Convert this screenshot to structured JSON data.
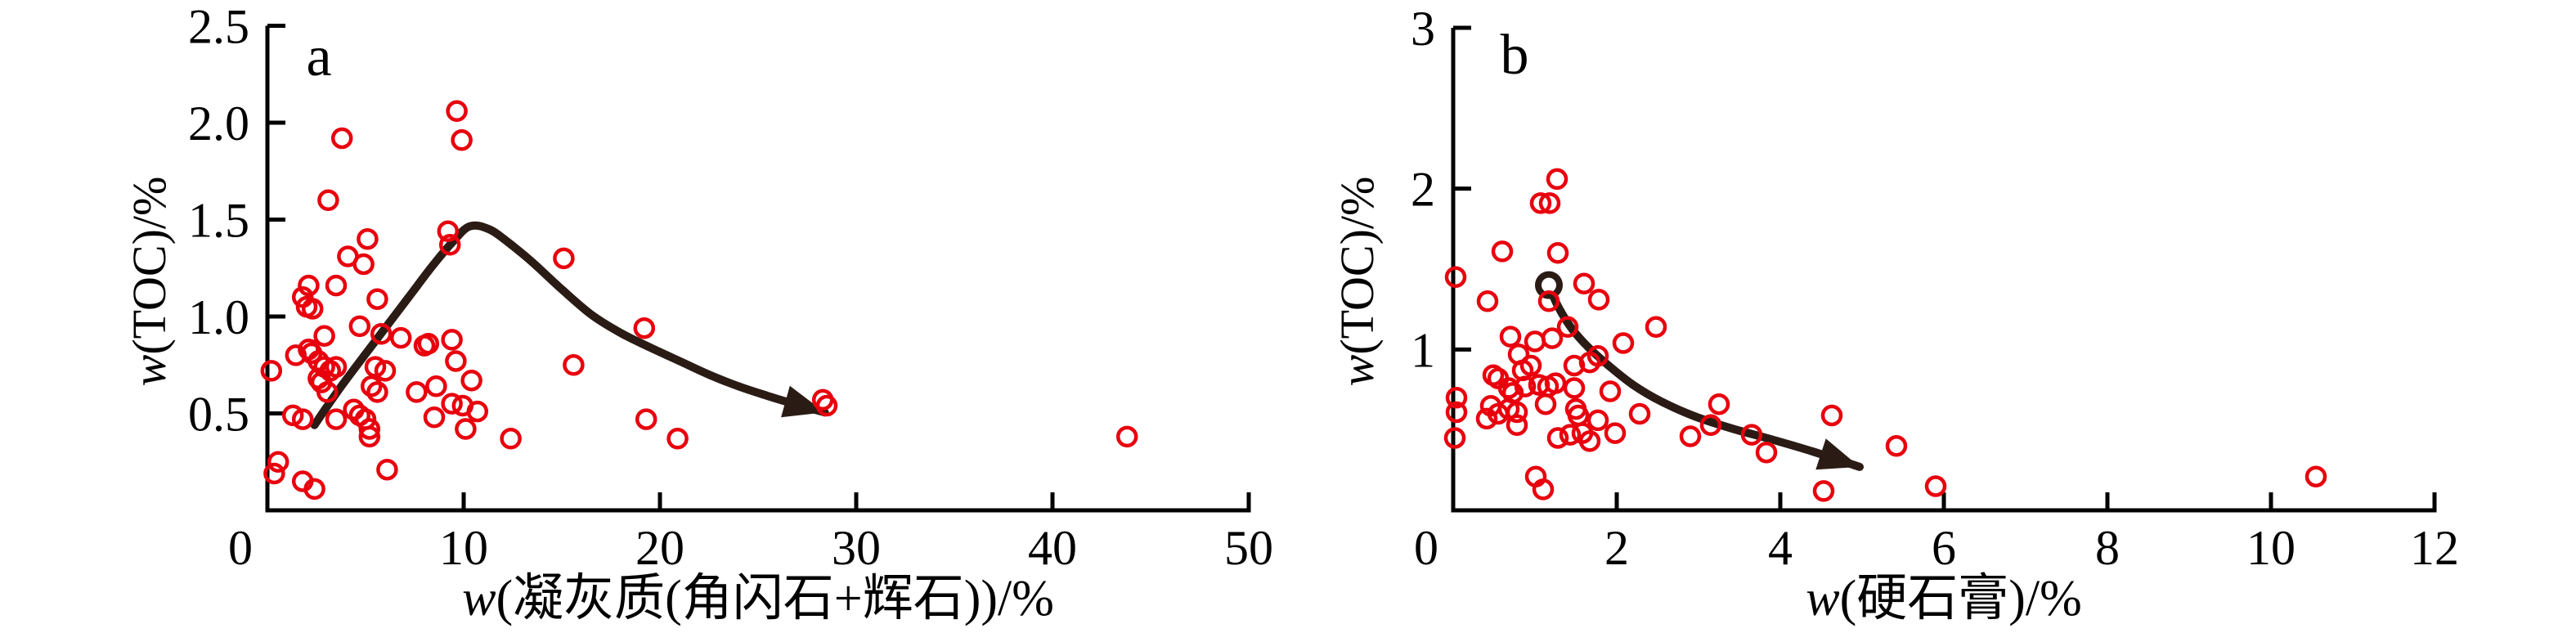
{
  "figure": {
    "background": "#ffffff",
    "panel_a_label": "a",
    "panel_b_label": "b"
  },
  "colors": {
    "marker": "#e8000d",
    "trend": "#2a1c15",
    "axis": "#000000",
    "text": "#000000"
  },
  "chart_data": [
    {
      "type": "scatter",
      "panel_label": "a",
      "xlabel": "w(凝灰质(角闪石+辉石))/%",
      "xlabel_parts": {
        "italic": "w",
        "rest": "(凝灰质(角闪石+辉石))/%"
      },
      "ylabel": "w(TOC)/%",
      "ylabel_parts": {
        "italic": "w",
        "rest": "(TOC)/%"
      },
      "xlim": [
        0,
        50
      ],
      "ylim": [
        0,
        2.5
      ],
      "xticks": [
        {
          "v": 0,
          "label": "0"
        },
        {
          "v": 10,
          "label": "10"
        },
        {
          "v": 20,
          "label": "20"
        },
        {
          "v": 30,
          "label": "30"
        },
        {
          "v": 40,
          "label": "40"
        },
        {
          "v": 50,
          "label": "50"
        }
      ],
      "yticks": [
        {
          "v": 0.5,
          "label": "0.5"
        },
        {
          "v": 1.0,
          "label": "1.0"
        },
        {
          "v": 1.5,
          "label": "1.5"
        },
        {
          "v": 2.0,
          "label": "2.0"
        },
        {
          "v": 2.5,
          "label": "2.5"
        }
      ],
      "grid": false,
      "legend": null,
      "marker": {
        "shape": "open-circle",
        "color": "#e8000d"
      },
      "points": [
        [
          3.8,
          1.92
        ],
        [
          9.65,
          2.06
        ],
        [
          9.9,
          1.91
        ],
        [
          3.1,
          1.6
        ],
        [
          5.1,
          1.4
        ],
        [
          4.1,
          1.31
        ],
        [
          4.9,
          1.27
        ],
        [
          9.2,
          1.44
        ],
        [
          9.3,
          1.37
        ],
        [
          15.1,
          1.3
        ],
        [
          2.1,
          1.16
        ],
        [
          3.5,
          1.16
        ],
        [
          1.8,
          1.1
        ],
        [
          2.0,
          1.05
        ],
        [
          2.3,
          1.04
        ],
        [
          5.6,
          1.09
        ],
        [
          4.7,
          0.95
        ],
        [
          5.8,
          0.91
        ],
        [
          6.8,
          0.89
        ],
        [
          2.9,
          0.9
        ],
        [
          8.0,
          0.85
        ],
        [
          8.2,
          0.86
        ],
        [
          9.4,
          0.88
        ],
        [
          9.6,
          0.77
        ],
        [
          19.2,
          0.94
        ],
        [
          2.1,
          0.83
        ],
        [
          2.25,
          0.81
        ],
        [
          1.45,
          0.8
        ],
        [
          0.2,
          0.72
        ],
        [
          2.6,
          0.77
        ],
        [
          2.9,
          0.74
        ],
        [
          3.2,
          0.72
        ],
        [
          3.5,
          0.74
        ],
        [
          5.5,
          0.74
        ],
        [
          6.0,
          0.72
        ],
        [
          15.6,
          0.75
        ],
        [
          2.6,
          0.68
        ],
        [
          2.75,
          0.66
        ],
        [
          10.4,
          0.67
        ],
        [
          3.05,
          0.61
        ],
        [
          5.3,
          0.64
        ],
        [
          5.6,
          0.61
        ],
        [
          8.6,
          0.64
        ],
        [
          7.6,
          0.61
        ],
        [
          9.4,
          0.55
        ],
        [
          9.95,
          0.54
        ],
        [
          10.7,
          0.51
        ],
        [
          28.3,
          0.57
        ],
        [
          28.5,
          0.54
        ],
        [
          8.5,
          0.48
        ],
        [
          4.4,
          0.52
        ],
        [
          4.7,
          0.49
        ],
        [
          19.3,
          0.47
        ],
        [
          1.3,
          0.49
        ],
        [
          1.8,
          0.47
        ],
        [
          3.5,
          0.47
        ],
        [
          5.0,
          0.47
        ],
        [
          5.2,
          0.42
        ],
        [
          10.1,
          0.42
        ],
        [
          5.2,
          0.38
        ],
        [
          12.4,
          0.37
        ],
        [
          20.9,
          0.37
        ],
        [
          43.8,
          0.38
        ],
        [
          6.1,
          0.21
        ],
        [
          0.55,
          0.25
        ],
        [
          0.35,
          0.19
        ],
        [
          1.8,
          0.15
        ],
        [
          2.4,
          0.11
        ]
      ],
      "trend": {
        "style": "arrow-curve",
        "color": "#2a1c15",
        "start_marker": false,
        "points": [
          [
            2.4,
            0.44
          ],
          [
            3.0,
            0.53
          ],
          [
            3.8,
            0.645
          ],
          [
            4.8,
            0.78
          ],
          [
            6.0,
            0.94
          ],
          [
            7.2,
            1.1
          ],
          [
            8.4,
            1.26
          ],
          [
            9.4,
            1.38
          ],
          [
            10.3,
            1.465
          ],
          [
            11.3,
            1.45
          ],
          [
            12.3,
            1.38
          ],
          [
            13.5,
            1.28
          ],
          [
            15.0,
            1.14
          ],
          [
            16.5,
            1.01
          ],
          [
            18.0,
            0.915
          ],
          [
            19.5,
            0.84
          ],
          [
            21.0,
            0.77
          ],
          [
            22.5,
            0.7
          ],
          [
            24.0,
            0.64
          ],
          [
            25.5,
            0.59
          ],
          [
            26.8,
            0.55
          ],
          [
            28.4,
            0.505
          ]
        ]
      }
    },
    {
      "type": "scatter",
      "panel_label": "b",
      "xlabel": "w(硬石膏)/%",
      "xlabel_parts": {
        "italic": "w",
        "rest": "(硬石膏)/%"
      },
      "ylabel": "w(TOC)/%",
      "ylabel_parts": {
        "italic": "w",
        "rest": "(TOC)/%"
      },
      "xlim": [
        0,
        12
      ],
      "ylim": [
        0,
        3
      ],
      "xticks": [
        {
          "v": 0,
          "label": "0"
        },
        {
          "v": 2,
          "label": "2"
        },
        {
          "v": 4,
          "label": "4"
        },
        {
          "v": 6,
          "label": "6"
        },
        {
          "v": 8,
          "label": "8"
        },
        {
          "v": 10,
          "label": "10"
        },
        {
          "v": 12,
          "label": "12"
        }
      ],
      "yticks": [
        {
          "v": 1,
          "label": "1"
        },
        {
          "v": 2,
          "label": "2"
        },
        {
          "v": 3,
          "label": "3"
        }
      ],
      "grid": false,
      "legend": null,
      "marker": {
        "shape": "open-circle",
        "color": "#e8000d"
      },
      "points": [
        [
          1.27,
          2.06
        ],
        [
          1.07,
          1.91
        ],
        [
          1.18,
          1.91
        ],
        [
          0.6,
          1.61
        ],
        [
          1.28,
          1.6
        ],
        [
          0.03,
          1.45
        ],
        [
          1.6,
          1.41
        ],
        [
          1.78,
          1.31
        ],
        [
          1.17,
          1.3
        ],
        [
          0.42,
          1.3
        ],
        [
          1.4,
          1.14
        ],
        [
          2.48,
          1.14
        ],
        [
          0.7,
          1.08
        ],
        [
          1.0,
          1.05
        ],
        [
          1.21,
          1.07
        ],
        [
          2.08,
          1.04
        ],
        [
          0.8,
          0.97
        ],
        [
          0.95,
          0.9
        ],
        [
          0.85,
          0.87
        ],
        [
          1.48,
          0.9
        ],
        [
          1.67,
          0.92
        ],
        [
          1.77,
          0.96
        ],
        [
          0.49,
          0.84
        ],
        [
          0.55,
          0.82
        ],
        [
          0.68,
          0.76
        ],
        [
          0.73,
          0.73
        ],
        [
          0.88,
          0.77
        ],
        [
          1.05,
          0.78
        ],
        [
          1.16,
          0.77
        ],
        [
          1.25,
          0.79
        ],
        [
          1.48,
          0.76
        ],
        [
          1.92,
          0.74
        ],
        [
          0.04,
          0.7
        ],
        [
          0.04,
          0.61
        ],
        [
          0.46,
          0.65
        ],
        [
          0.55,
          0.6
        ],
        [
          0.68,
          0.63
        ],
        [
          0.78,
          0.61
        ],
        [
          0.41,
          0.57
        ],
        [
          0.78,
          0.53
        ],
        [
          1.13,
          0.66
        ],
        [
          1.5,
          0.63
        ],
        [
          1.53,
          0.59
        ],
        [
          1.77,
          0.56
        ],
        [
          2.28,
          0.6
        ],
        [
          3.25,
          0.66
        ],
        [
          2.9,
          0.46
        ],
        [
          3.15,
          0.53
        ],
        [
          3.65,
          0.47
        ],
        [
          3.83,
          0.36
        ],
        [
          4.63,
          0.59
        ],
        [
          5.42,
          0.4
        ],
        [
          1.28,
          0.45
        ],
        [
          1.43,
          0.47
        ],
        [
          1.58,
          0.48
        ],
        [
          1.67,
          0.43
        ],
        [
          1.98,
          0.48
        ],
        [
          0.02,
          0.45
        ],
        [
          1.01,
          0.21
        ],
        [
          1.1,
          0.13
        ],
        [
          4.53,
          0.12
        ],
        [
          5.9,
          0.15
        ],
        [
          10.55,
          0.21
        ]
      ],
      "trend": {
        "style": "arrow-curve",
        "color": "#2a1c15",
        "start_marker": true,
        "points": [
          [
            1.17,
            1.4
          ],
          [
            1.28,
            1.27
          ],
          [
            1.45,
            1.13
          ],
          [
            1.65,
            1.015
          ],
          [
            1.9,
            0.9
          ],
          [
            2.2,
            0.78
          ],
          [
            2.55,
            0.675
          ],
          [
            2.95,
            0.585
          ],
          [
            3.4,
            0.51
          ],
          [
            3.9,
            0.44
          ],
          [
            4.4,
            0.365
          ],
          [
            4.97,
            0.27
          ]
        ]
      }
    }
  ]
}
